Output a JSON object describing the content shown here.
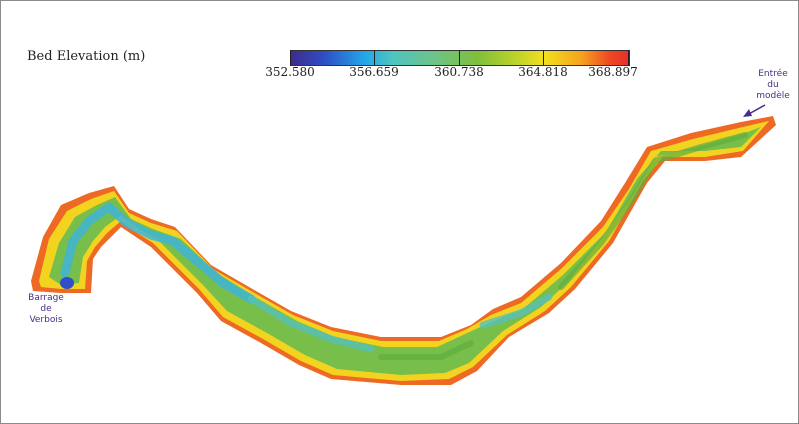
{
  "map": {
    "title": "Bed Elevation (m)",
    "legend": {
      "ticks": [
        "352.580",
        "356.659",
        "360.738",
        "364.818",
        "368.897"
      ],
      "colors": [
        "#3f2b8c",
        "#22a8e8",
        "#6cc48a",
        "#7fbf3c",
        "#f2e01e",
        "#f5a21e",
        "#e8302a"
      ]
    },
    "annotations": {
      "inlet": "Entrée\ndu\nmodèle",
      "dam": "Barrage\nde\nVerbois"
    }
  }
}
